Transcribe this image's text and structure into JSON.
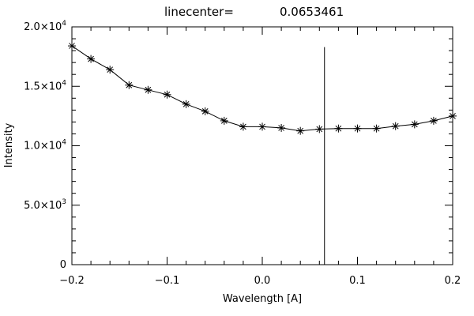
{
  "chart_data": {
    "type": "line",
    "title_label": "linecenter=",
    "title_value": "0.0653461",
    "xlabel": "Wavelength [A]",
    "ylabel": "Intensity",
    "xlim": [
      -0.2,
      0.2
    ],
    "ylim": [
      0,
      20000
    ],
    "x_ticks": [
      -0.2,
      -0.1,
      0.0,
      0.1,
      0.2
    ],
    "x_tick_labels": [
      "−0.2",
      "−0.1",
      "0.0",
      "0.1",
      "0.2"
    ],
    "y_ticks": [
      0,
      5000,
      10000,
      15000,
      20000
    ],
    "y_tick_labels": [
      {
        "mant": "0",
        "exp": ""
      },
      {
        "mant": "5.0×10",
        "exp": "3"
      },
      {
        "mant": "1.0×10",
        "exp": "4"
      },
      {
        "mant": "1.5×10",
        "exp": "4"
      },
      {
        "mant": "2.0×10",
        "exp": "4"
      }
    ],
    "marker": "asterisk",
    "series": [
      {
        "x": [
          -0.2,
          -0.18,
          -0.16,
          -0.14,
          -0.12,
          -0.1,
          -0.08,
          -0.06,
          -0.04,
          -0.02,
          0.0,
          0.02,
          0.04,
          0.06,
          0.08,
          0.1,
          0.12,
          0.14,
          0.16,
          0.18,
          0.2
        ],
        "values": [
          18400,
          17300,
          16400,
          15100,
          14700,
          14300,
          13500,
          12900,
          12100,
          11600,
          11600,
          11500,
          11250,
          11400,
          11450,
          11450,
          11450,
          11650,
          11800,
          12100,
          12500
        ]
      }
    ],
    "vline": {
      "x": 0.0653461,
      "y_top": 18300
    }
  }
}
